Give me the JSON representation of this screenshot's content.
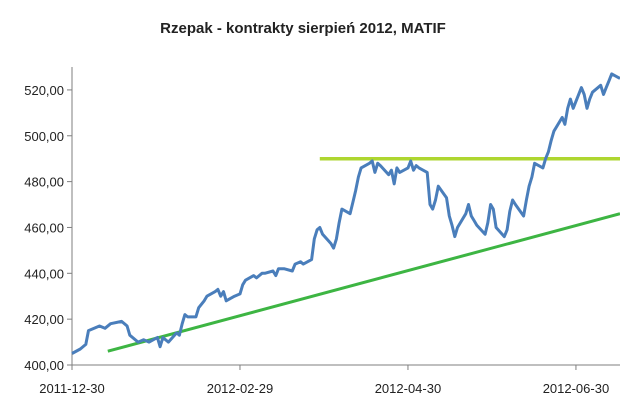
{
  "chart_data": {
    "type": "line",
    "title": "Rzepak - kontrakty sierpień 2012, MATIF",
    "xlabel": "",
    "ylabel": "",
    "ylim": [
      400,
      530
    ],
    "xlim": [
      "2011-12-30",
      "2012-07-16"
    ],
    "y_ticks": [
      {
        "value": 400,
        "label": "400,00"
      },
      {
        "value": 420,
        "label": "420,00"
      },
      {
        "value": 440,
        "label": "440,00"
      },
      {
        "value": 460,
        "label": "460,00"
      },
      {
        "value": 480,
        "label": "480,00"
      },
      {
        "value": 500,
        "label": "500,00"
      },
      {
        "value": 520,
        "label": "520,00"
      }
    ],
    "x_ticks": [
      {
        "value": "2011-12-30",
        "label": "2011-12-30"
      },
      {
        "value": "2012-02-29",
        "label": "2012-02-29"
      },
      {
        "value": "2012-04-30",
        "label": "2012-04-30"
      },
      {
        "value": "2012-06-30",
        "label": "2012-06-30"
      }
    ],
    "grid": false,
    "legend": "none",
    "series": [
      {
        "color": "#4a7ebb",
        "points": [
          [
            "2011-12-30",
            405
          ],
          [
            "2012-01-02",
            407
          ],
          [
            "2012-01-04",
            409
          ],
          [
            "2012-01-05",
            415
          ],
          [
            "2012-01-09",
            417
          ],
          [
            "2012-01-11",
            416
          ],
          [
            "2012-01-13",
            418
          ],
          [
            "2012-01-17",
            419
          ],
          [
            "2012-01-19",
            417
          ],
          [
            "2012-01-20",
            413
          ],
          [
            "2012-01-23",
            410
          ],
          [
            "2012-01-25",
            411
          ],
          [
            "2012-01-27",
            410
          ],
          [
            "2012-01-30",
            412
          ],
          [
            "2012-01-31",
            408
          ],
          [
            "2012-02-01",
            412
          ],
          [
            "2012-02-03",
            410
          ],
          [
            "2012-02-06",
            414
          ],
          [
            "2012-02-07",
            413
          ],
          [
            "2012-02-08",
            418
          ],
          [
            "2012-02-09",
            422
          ],
          [
            "2012-02-10",
            421
          ],
          [
            "2012-02-13",
            421
          ],
          [
            "2012-02-14",
            425
          ],
          [
            "2012-02-16",
            428
          ],
          [
            "2012-02-17",
            430
          ],
          [
            "2012-02-20",
            432
          ],
          [
            "2012-02-21",
            433
          ],
          [
            "2012-02-22",
            430
          ],
          [
            "2012-02-23",
            432
          ],
          [
            "2012-02-24",
            428
          ],
          [
            "2012-02-27",
            430
          ],
          [
            "2012-02-29",
            431
          ],
          [
            "2012-03-01",
            435
          ],
          [
            "2012-03-02",
            437
          ],
          [
            "2012-03-05",
            439
          ],
          [
            "2012-03-06",
            438
          ],
          [
            "2012-03-08",
            440
          ],
          [
            "2012-03-09",
            440
          ],
          [
            "2012-03-12",
            441
          ],
          [
            "2012-03-13",
            439
          ],
          [
            "2012-03-14",
            442
          ],
          [
            "2012-03-16",
            442
          ],
          [
            "2012-03-19",
            441
          ],
          [
            "2012-03-20",
            444
          ],
          [
            "2012-03-22",
            445
          ],
          [
            "2012-03-23",
            444
          ],
          [
            "2012-03-26",
            446
          ],
          [
            "2012-03-27",
            455
          ],
          [
            "2012-03-28",
            459
          ],
          [
            "2012-03-29",
            460
          ],
          [
            "2012-03-30",
            457
          ],
          [
            "2012-04-02",
            453
          ],
          [
            "2012-04-03",
            451
          ],
          [
            "2012-04-04",
            455
          ],
          [
            "2012-04-05",
            462
          ],
          [
            "2012-04-06",
            468
          ],
          [
            "2012-04-09",
            466
          ],
          [
            "2012-04-10",
            471
          ],
          [
            "2012-04-11",
            476
          ],
          [
            "2012-04-12",
            482
          ],
          [
            "2012-04-13",
            486
          ],
          [
            "2012-04-16",
            488
          ],
          [
            "2012-04-17",
            489
          ],
          [
            "2012-04-18",
            484
          ],
          [
            "2012-04-19",
            488
          ],
          [
            "2012-04-20",
            487
          ],
          [
            "2012-04-23",
            483
          ],
          [
            "2012-04-24",
            485
          ],
          [
            "2012-04-25",
            479
          ],
          [
            "2012-04-26",
            486
          ],
          [
            "2012-04-27",
            484
          ],
          [
            "2012-04-30",
            486
          ],
          [
            "2012-05-01",
            489
          ],
          [
            "2012-05-02",
            485
          ],
          [
            "2012-05-03",
            487
          ],
          [
            "2012-05-04",
            486
          ],
          [
            "2012-05-07",
            484
          ],
          [
            "2012-05-08",
            470
          ],
          [
            "2012-05-09",
            468
          ],
          [
            "2012-05-10",
            472
          ],
          [
            "2012-05-11",
            478
          ],
          [
            "2012-05-14",
            473
          ],
          [
            "2012-05-15",
            465
          ],
          [
            "2012-05-16",
            461
          ],
          [
            "2012-05-17",
            456
          ],
          [
            "2012-05-18",
            460
          ],
          [
            "2012-05-21",
            466
          ],
          [
            "2012-05-22",
            470
          ],
          [
            "2012-05-23",
            465
          ],
          [
            "2012-05-24",
            463
          ],
          [
            "2012-05-25",
            461
          ],
          [
            "2012-05-28",
            457
          ],
          [
            "2012-05-29",
            462
          ],
          [
            "2012-05-30",
            470
          ],
          [
            "2012-05-31",
            468
          ],
          [
            "2012-06-01",
            460
          ],
          [
            "2012-06-04",
            456
          ],
          [
            "2012-06-05",
            459
          ],
          [
            "2012-06-06",
            467
          ],
          [
            "2012-06-07",
            472
          ],
          [
            "2012-06-08",
            470
          ],
          [
            "2012-06-11",
            465
          ],
          [
            "2012-06-12",
            472
          ],
          [
            "2012-06-13",
            478
          ],
          [
            "2012-06-14",
            482
          ],
          [
            "2012-06-15",
            488
          ],
          [
            "2012-06-18",
            486
          ],
          [
            "2012-06-19",
            490
          ],
          [
            "2012-06-20",
            493
          ],
          [
            "2012-06-21",
            498
          ],
          [
            "2012-06-22",
            502
          ],
          [
            "2012-06-25",
            508
          ],
          [
            "2012-06-26",
            505
          ],
          [
            "2012-06-27",
            512
          ],
          [
            "2012-06-28",
            516
          ],
          [
            "2012-06-29",
            512
          ],
          [
            "2012-07-02",
            521
          ],
          [
            "2012-07-03",
            518
          ],
          [
            "2012-07-04",
            512
          ],
          [
            "2012-07-05",
            516
          ],
          [
            "2012-07-06",
            519
          ],
          [
            "2012-07-09",
            522
          ],
          [
            "2012-07-10",
            518
          ],
          [
            "2012-07-11",
            521
          ],
          [
            "2012-07-12",
            524
          ],
          [
            "2012-07-13",
            527
          ],
          [
            "2012-07-16",
            525
          ]
        ]
      },
      {
        "color": "#aed630",
        "points": [
          [
            "2012-03-29",
            490
          ],
          [
            "2012-07-16",
            490
          ]
        ]
      },
      {
        "color": "#3db543",
        "points": [
          [
            "2012-01-12",
            406
          ],
          [
            "2012-07-16",
            466
          ]
        ]
      }
    ]
  }
}
